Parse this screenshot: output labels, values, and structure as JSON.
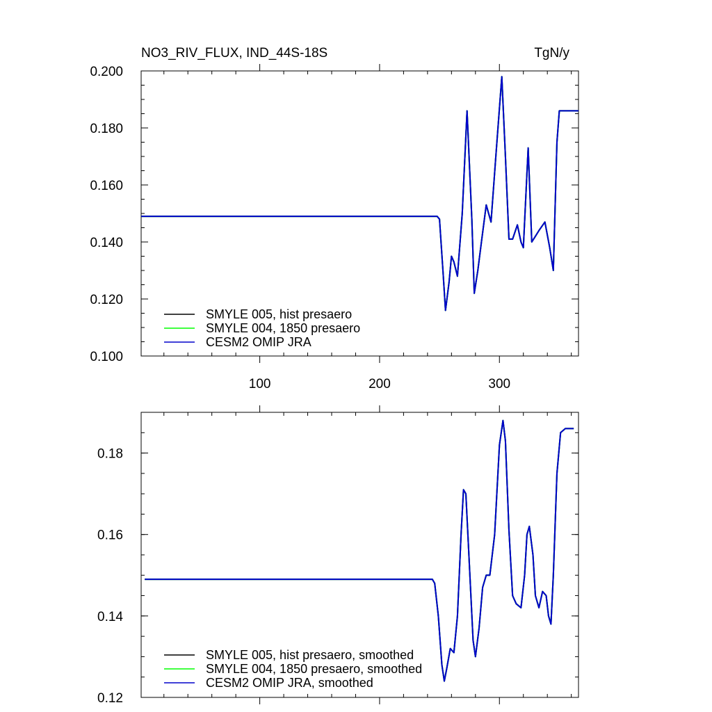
{
  "header": {
    "title": "NO3_RIV_FLUX, IND_44S-18S",
    "units": "TgN/y"
  },
  "chart_data": [
    {
      "type": "line",
      "title": "NO3_RIV_FLUX, IND_44S-18S",
      "units_label": "TgN/y",
      "xlim": [
        1,
        366
      ],
      "ylim": [
        0.1,
        0.2
      ],
      "xticks": [
        100,
        200,
        300
      ],
      "xtick_labels": [
        "100",
        "200",
        "300"
      ],
      "yticks": [
        0.1,
        0.12,
        0.14,
        0.16,
        0.18,
        0.2
      ],
      "ytick_labels": [
        "0.100",
        "0.120",
        "0.140",
        "0.160",
        "0.180",
        "0.200"
      ],
      "grid": false,
      "legend_position": "bottom-left",
      "x": [
        1,
        248,
        250,
        253,
        255,
        258,
        260,
        262,
        265,
        269,
        273,
        277,
        279,
        282,
        285,
        289,
        293,
        297,
        302,
        305,
        308,
        311,
        315,
        318,
        320,
        324,
        327,
        330,
        333,
        338,
        342,
        345,
        348,
        350,
        356,
        362,
        366
      ],
      "series": [
        {
          "name": "SMYLE 005, hist presaero",
          "color": "#000000",
          "values": [
            0.149,
            0.149,
            0.148,
            0.129,
            0.116,
            0.126,
            0.135,
            0.133,
            0.128,
            0.15,
            0.186,
            0.148,
            0.122,
            0.13,
            0.14,
            0.153,
            0.147,
            0.17,
            0.198,
            0.17,
            0.141,
            0.141,
            0.146,
            0.14,
            0.138,
            0.173,
            0.14,
            0.142,
            0.144,
            0.147,
            0.138,
            0.13,
            0.175,
            0.186,
            0.186,
            0.186,
            0.186
          ]
        },
        {
          "name": "SMYLE 004, 1850 presaero",
          "color": "#00ff00",
          "values": [
            0.149,
            0.149,
            0.148,
            0.129,
            0.116,
            0.126,
            0.135,
            0.133,
            0.128,
            0.15,
            0.186,
            0.148,
            0.122,
            0.13,
            0.14,
            0.153,
            0.147,
            0.17,
            0.198,
            0.17,
            0.141,
            0.141,
            0.146,
            0.14,
            0.138,
            0.173,
            0.14,
            0.142,
            0.144,
            0.147,
            0.138,
            0.13,
            0.175,
            0.186,
            0.186,
            0.186,
            0.186
          ]
        },
        {
          "name": "CESM2 OMIP JRA",
          "color": "#0000cc",
          "values": [
            0.149,
            0.149,
            0.148,
            0.129,
            0.116,
            0.126,
            0.135,
            0.133,
            0.128,
            0.15,
            0.186,
            0.148,
            0.122,
            0.13,
            0.14,
            0.153,
            0.147,
            0.17,
            0.198,
            0.17,
            0.141,
            0.141,
            0.146,
            0.14,
            0.138,
            0.173,
            0.14,
            0.142,
            0.144,
            0.147,
            0.138,
            0.13,
            0.175,
            0.186,
            0.186,
            0.186,
            0.186
          ]
        }
      ]
    },
    {
      "type": "line",
      "xlim": [
        1,
        366
      ],
      "ylim": [
        0.12,
        0.19
      ],
      "xticks": [
        100,
        200,
        300
      ],
      "xtick_labels": [],
      "yticks": [
        0.12,
        0.14,
        0.16,
        0.18
      ],
      "ytick_labels": [
        "0.12",
        "0.14",
        "0.16",
        "0.18"
      ],
      "grid": false,
      "legend_position": "bottom-left",
      "x": [
        4,
        244,
        246,
        249,
        252,
        254,
        256,
        259,
        262,
        265,
        268,
        270,
        272,
        274,
        278,
        280,
        283,
        286,
        289,
        292,
        296,
        300,
        303,
        305,
        308,
        311,
        314,
        318,
        321,
        323,
        325,
        328,
        330,
        333,
        336,
        339,
        341,
        343,
        345,
        348,
        351,
        355,
        362
      ],
      "series": [
        {
          "name": "SMYLE 005, hist presaero, smoothed",
          "color": "#000000",
          "values": [
            0.149,
            0.149,
            0.148,
            0.14,
            0.128,
            0.124,
            0.127,
            0.132,
            0.131,
            0.14,
            0.16,
            0.171,
            0.17,
            0.158,
            0.134,
            0.13,
            0.137,
            0.147,
            0.15,
            0.15,
            0.16,
            0.182,
            0.188,
            0.183,
            0.161,
            0.145,
            0.143,
            0.142,
            0.15,
            0.16,
            0.162,
            0.155,
            0.145,
            0.142,
            0.146,
            0.145,
            0.14,
            0.138,
            0.15,
            0.175,
            0.185,
            0.186,
            0.186
          ]
        },
        {
          "name": "SMYLE 004, 1850 presaero, smoothed",
          "color": "#00ff00",
          "values": [
            0.149,
            0.149,
            0.148,
            0.14,
            0.128,
            0.124,
            0.127,
            0.132,
            0.131,
            0.14,
            0.16,
            0.171,
            0.17,
            0.158,
            0.134,
            0.13,
            0.137,
            0.147,
            0.15,
            0.15,
            0.16,
            0.182,
            0.188,
            0.183,
            0.161,
            0.145,
            0.143,
            0.142,
            0.15,
            0.16,
            0.162,
            0.155,
            0.145,
            0.142,
            0.146,
            0.145,
            0.14,
            0.138,
            0.15,
            0.175,
            0.185,
            0.186,
            0.186
          ]
        },
        {
          "name": "CESM2 OMIP JRA, smoothed",
          "color": "#0000cc",
          "values": [
            0.149,
            0.149,
            0.148,
            0.14,
            0.128,
            0.124,
            0.127,
            0.132,
            0.131,
            0.14,
            0.16,
            0.171,
            0.17,
            0.158,
            0.134,
            0.13,
            0.137,
            0.147,
            0.15,
            0.15,
            0.16,
            0.182,
            0.188,
            0.183,
            0.161,
            0.145,
            0.143,
            0.142,
            0.15,
            0.16,
            0.162,
            0.155,
            0.145,
            0.142,
            0.146,
            0.145,
            0.14,
            0.138,
            0.15,
            0.175,
            0.185,
            0.186,
            0.186
          ]
        }
      ]
    }
  ]
}
